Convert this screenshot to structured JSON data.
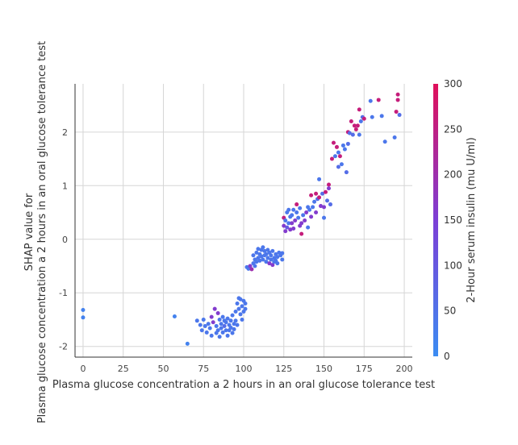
{
  "chart_data": {
    "type": "scatter",
    "xlabel": "Plasma glucose concentration a 2 hours in an oral glucose tolerance test",
    "ylabel_lines": [
      "SHAP value for",
      "Plasma glucose concentration a 2 hours in an oral glucose tolerance test"
    ],
    "colorbar_label": "2-Hour serum insulin (mu U/ml)",
    "xlim": [
      -5,
      205
    ],
    "ylim": [
      -2.2,
      2.9
    ],
    "x_ticks": [
      0,
      25,
      50,
      75,
      100,
      125,
      150,
      175,
      200
    ],
    "y_ticks": [
      -2,
      -1,
      0,
      1,
      2
    ],
    "colorbar_ticks": [
      0,
      50,
      100,
      150,
      200,
      250,
      300
    ],
    "colorbar_range": [
      0,
      300
    ],
    "grid": true,
    "colors": {
      "low": "#3b8cf2",
      "mid": "#7c3fd6",
      "high": "#e0105a"
    },
    "points": [
      [
        0,
        -1.32,
        20
      ],
      [
        0,
        -1.46,
        20
      ],
      [
        57,
        -1.44,
        20
      ],
      [
        65,
        -1.95,
        20
      ],
      [
        71,
        -1.52,
        40
      ],
      [
        73,
        -1.6,
        40
      ],
      [
        74,
        -1.7,
        40
      ],
      [
        75,
        -1.5,
        40
      ],
      [
        76,
        -1.62,
        40
      ],
      [
        77,
        -1.74,
        40
      ],
      [
        78,
        -1.58,
        40
      ],
      [
        79,
        -1.66,
        40
      ],
      [
        80,
        -1.8,
        40
      ],
      [
        80,
        -1.45,
        160
      ],
      [
        81,
        -1.55,
        160
      ],
      [
        82,
        -1.3,
        160
      ],
      [
        83,
        -1.62,
        40
      ],
      [
        83,
        -1.75,
        40
      ],
      [
        84,
        -1.38,
        160
      ],
      [
        84,
        -1.7,
        40
      ],
      [
        85,
        -1.5,
        40
      ],
      [
        85,
        -1.82,
        40
      ],
      [
        86,
        -1.58,
        40
      ],
      [
        86,
        -1.66,
        40
      ],
      [
        87,
        -1.45,
        40
      ],
      [
        87,
        -1.74,
        40
      ],
      [
        88,
        -1.52,
        40
      ],
      [
        88,
        -1.62,
        60
      ],
      [
        89,
        -1.7,
        40
      ],
      [
        89,
        -1.55,
        40
      ],
      [
        90,
        -1.8,
        40
      ],
      [
        90,
        -1.48,
        40
      ],
      [
        91,
        -1.6,
        40
      ],
      [
        91,
        -1.7,
        40
      ],
      [
        92,
        -1.52,
        40
      ],
      [
        92,
        -1.65,
        40
      ],
      [
        93,
        -1.42,
        40
      ],
      [
        93,
        -1.75,
        40
      ],
      [
        94,
        -1.58,
        40
      ],
      [
        94,
        -1.68,
        40
      ],
      [
        95,
        -1.35,
        40
      ],
      [
        95,
        -1.52,
        40
      ],
      [
        96,
        -1.2,
        40
      ],
      [
        96,
        -1.6,
        40
      ],
      [
        97,
        -1.1,
        40
      ],
      [
        97,
        -1.3,
        40
      ],
      [
        98,
        -1.12,
        40
      ],
      [
        98,
        -1.4,
        40
      ],
      [
        99,
        -1.25,
        40
      ],
      [
        99,
        -1.5,
        40
      ],
      [
        100,
        -1.15,
        40
      ],
      [
        100,
        -1.35,
        40
      ],
      [
        101,
        -1.3,
        40
      ],
      [
        101,
        -1.2,
        40
      ],
      [
        102,
        -0.52,
        40
      ],
      [
        103,
        -0.55,
        40
      ],
      [
        104,
        -0.5,
        160
      ],
      [
        105,
        -0.56,
        200
      ],
      [
        106,
        -0.45,
        40
      ],
      [
        106,
        -0.3,
        40
      ],
      [
        107,
        -0.5,
        40
      ],
      [
        107,
        -0.38,
        40
      ],
      [
        108,
        -0.25,
        40
      ],
      [
        108,
        -0.42,
        40
      ],
      [
        109,
        -0.18,
        40
      ],
      [
        109,
        -0.35,
        40
      ],
      [
        110,
        -0.28,
        40
      ],
      [
        110,
        -0.4,
        40
      ],
      [
        111,
        -0.2,
        40
      ],
      [
        111,
        -0.32,
        40
      ],
      [
        112,
        -0.15,
        40
      ],
      [
        112,
        -0.38,
        40
      ],
      [
        113,
        -0.22,
        40
      ],
      [
        113,
        -0.3,
        40
      ],
      [
        114,
        -0.28,
        40
      ],
      [
        114,
        -0.42,
        40
      ],
      [
        115,
        -0.2,
        40
      ],
      [
        115,
        -0.35,
        40
      ],
      [
        116,
        -0.25,
        40
      ],
      [
        116,
        -0.45,
        160
      ],
      [
        117,
        -0.3,
        40
      ],
      [
        117,
        -0.38,
        40
      ],
      [
        118,
        -0.22,
        40
      ],
      [
        118,
        -0.48,
        160
      ],
      [
        119,
        -0.35,
        40
      ],
      [
        119,
        -0.42,
        40
      ],
      [
        120,
        -0.28,
        40
      ],
      [
        120,
        -0.4,
        40
      ],
      [
        121,
        -0.33,
        40
      ],
      [
        121,
        -0.45,
        40
      ],
      [
        122,
        -0.25,
        40
      ],
      [
        123,
        -0.3,
        40
      ],
      [
        124,
        -0.38,
        40
      ],
      [
        124,
        -0.26,
        40
      ],
      [
        125,
        0.25,
        160
      ],
      [
        125,
        0.4,
        250
      ],
      [
        126,
        0.15,
        160
      ],
      [
        126,
        0.35,
        40
      ],
      [
        127,
        0.5,
        40
      ],
      [
        127,
        0.22,
        100
      ],
      [
        128,
        0.3,
        40
      ],
      [
        128,
        0.55,
        40
      ],
      [
        129,
        0.18,
        160
      ],
      [
        129,
        0.42,
        40
      ],
      [
        130,
        0.3,
        160
      ],
      [
        130,
        0.45,
        40
      ],
      [
        131,
        0.55,
        40
      ],
      [
        131,
        0.2,
        160
      ],
      [
        132,
        0.35,
        160
      ],
      [
        133,
        0.5,
        40
      ],
      [
        133,
        0.65,
        260
      ],
      [
        134,
        0.4,
        40
      ],
      [
        135,
        0.25,
        160
      ],
      [
        135,
        0.58,
        40
      ],
      [
        136,
        0.3,
        160
      ],
      [
        136,
        0.1,
        260
      ],
      [
        137,
        0.45,
        40
      ],
      [
        138,
        0.35,
        160
      ],
      [
        139,
        0.5,
        160
      ],
      [
        140,
        0.22,
        40
      ],
      [
        140,
        0.6,
        40
      ],
      [
        141,
        0.55,
        40
      ],
      [
        142,
        0.82,
        260
      ],
      [
        142,
        0.42,
        160
      ],
      [
        143,
        0.6,
        40
      ],
      [
        144,
        0.7,
        40
      ],
      [
        145,
        0.85,
        260
      ],
      [
        145,
        0.5,
        160
      ],
      [
        146,
        0.75,
        60
      ],
      [
        147,
        1.12,
        40
      ],
      [
        147,
        0.78,
        260
      ],
      [
        148,
        0.62,
        160
      ],
      [
        149,
        0.85,
        60
      ],
      [
        150,
        0.4,
        40
      ],
      [
        150,
        0.6,
        160
      ],
      [
        151,
        0.88,
        260
      ],
      [
        152,
        0.72,
        60
      ],
      [
        153,
        1.02,
        260
      ],
      [
        153,
        0.95,
        160
      ],
      [
        154,
        0.65,
        60
      ],
      [
        155,
        1.5,
        260
      ],
      [
        156,
        1.8,
        260
      ],
      [
        157,
        1.55,
        40
      ],
      [
        158,
        1.72,
        260
      ],
      [
        159,
        1.35,
        60
      ],
      [
        159,
        1.62,
        40
      ],
      [
        160,
        1.55,
        260
      ],
      [
        161,
        1.4,
        40
      ],
      [
        162,
        1.75,
        40
      ],
      [
        163,
        1.68,
        40
      ],
      [
        164,
        1.25,
        60
      ],
      [
        165,
        2.0,
        260
      ],
      [
        165,
        1.78,
        60
      ],
      [
        166,
        1.98,
        60
      ],
      [
        167,
        2.2,
        260
      ],
      [
        168,
        1.95,
        60
      ],
      [
        169,
        2.12,
        260
      ],
      [
        170,
        2.05,
        260
      ],
      [
        171,
        2.12,
        260
      ],
      [
        172,
        1.95,
        40
      ],
      [
        172,
        2.42,
        260
      ],
      [
        173,
        2.2,
        40
      ],
      [
        174,
        2.28,
        60
      ],
      [
        175,
        2.25,
        260
      ],
      [
        179,
        2.58,
        40
      ],
      [
        180,
        2.28,
        40
      ],
      [
        184,
        2.6,
        260
      ],
      [
        186,
        2.3,
        40
      ],
      [
        188,
        1.82,
        40
      ],
      [
        194,
        1.9,
        40
      ],
      [
        195,
        2.38,
        260
      ],
      [
        196,
        2.6,
        260
      ],
      [
        196,
        2.7,
        260
      ],
      [
        197,
        2.32,
        60
      ]
    ]
  }
}
